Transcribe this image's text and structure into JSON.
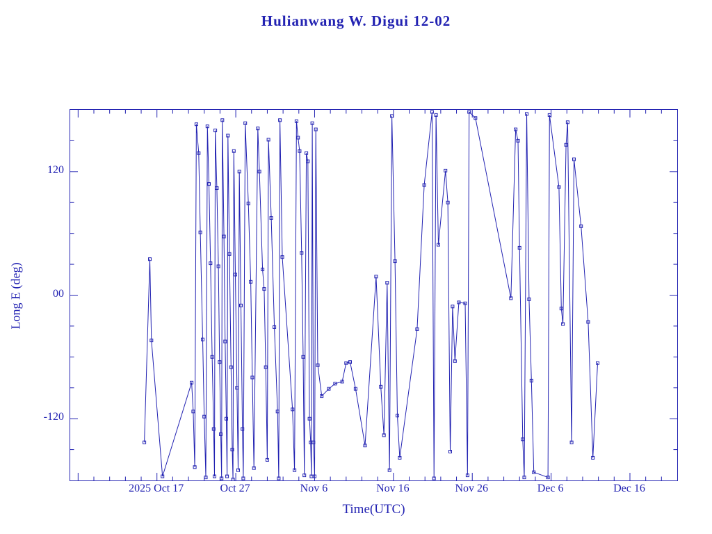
{
  "title": "Hulianwang W. Digui 12-02",
  "colors": {
    "accent": "#2222b2",
    "background": "#ffffff"
  },
  "chart_data": {
    "type": "line",
    "title": "Hulianwang W. Digui 12-02",
    "xlabel": "Time(UTC)",
    "ylabel": "Long E (deg)",
    "x_unit": "days since 2025 Oct 17 00:00 UTC",
    "xlim": [
      -11,
      66
    ],
    "ylim": [
      -180,
      180
    ],
    "grid": false,
    "legend": "none",
    "marker": "open-square",
    "line_color": "#2222b2",
    "x_ticks": [
      {
        "value": 0,
        "label": "2025 Oct 17"
      },
      {
        "value": 10,
        "label": "Oct 27"
      },
      {
        "value": 20,
        "label": "Nov 6"
      },
      {
        "value": 30,
        "label": "Nov 16"
      },
      {
        "value": 40,
        "label": "Nov 26"
      },
      {
        "value": 50,
        "label": "Dec 6"
      },
      {
        "value": 60,
        "label": "Dec 16"
      }
    ],
    "y_ticks": [
      {
        "value": 120,
        "label": "120"
      },
      {
        "value": 0,
        "label": "00"
      },
      {
        "value": -120,
        "label": "-120"
      }
    ],
    "x_minor_step": 2,
    "y_minor_step": 30,
    "points": [
      [
        -1.6,
        -143
      ],
      [
        -0.9,
        35
      ],
      [
        -0.7,
        -44
      ],
      [
        0.7,
        -176
      ],
      [
        4.4,
        -85
      ],
      [
        4.6,
        -113
      ],
      [
        4.8,
        -167
      ],
      [
        5.0,
        166
      ],
      [
        5.3,
        138
      ],
      [
        5.5,
        61
      ],
      [
        5.8,
        -43
      ],
      [
        6.0,
        -118
      ],
      [
        6.2,
        -177
      ],
      [
        6.4,
        164
      ],
      [
        6.6,
        108
      ],
      [
        6.8,
        31
      ],
      [
        7.0,
        -60
      ],
      [
        7.2,
        -130
      ],
      [
        7.3,
        -176
      ],
      [
        7.4,
        160
      ],
      [
        7.6,
        104
      ],
      [
        7.8,
        28
      ],
      [
        7.95,
        -65
      ],
      [
        8.1,
        -135
      ],
      [
        8.2,
        -178
      ],
      [
        8.3,
        170
      ],
      [
        8.5,
        57
      ],
      [
        8.65,
        -45
      ],
      [
        8.8,
        -120
      ],
      [
        8.9,
        -176
      ],
      [
        9.0,
        155
      ],
      [
        9.2,
        40
      ],
      [
        9.4,
        -70
      ],
      [
        9.55,
        -150
      ],
      [
        9.65,
        -179
      ],
      [
        9.75,
        140
      ],
      [
        9.95,
        20
      ],
      [
        10.15,
        -90
      ],
      [
        10.3,
        -170
      ],
      [
        10.45,
        120
      ],
      [
        10.65,
        -10
      ],
      [
        10.85,
        -130
      ],
      [
        10.95,
        -178
      ],
      [
        11.2,
        167
      ],
      [
        11.6,
        89
      ],
      [
        11.9,
        13
      ],
      [
        12.1,
        -80
      ],
      [
        12.3,
        -168
      ],
      [
        12.8,
        162
      ],
      [
        13.0,
        120
      ],
      [
        13.4,
        25
      ],
      [
        13.6,
        6
      ],
      [
        13.8,
        -70
      ],
      [
        14.0,
        -160
      ],
      [
        14.15,
        151
      ],
      [
        14.5,
        75
      ],
      [
        14.9,
        -31
      ],
      [
        15.3,
        -113
      ],
      [
        15.45,
        -178
      ],
      [
        15.6,
        170
      ],
      [
        15.9,
        37
      ],
      [
        17.2,
        -111
      ],
      [
        17.45,
        -170
      ],
      [
        17.7,
        169
      ],
      [
        17.9,
        153
      ],
      [
        18.1,
        140
      ],
      [
        18.35,
        41
      ],
      [
        18.55,
        -60
      ],
      [
        18.7,
        -175
      ],
      [
        18.95,
        138
      ],
      [
        19.15,
        130
      ],
      [
        19.35,
        -120
      ],
      [
        19.5,
        -143
      ],
      [
        19.6,
        -176
      ],
      [
        19.7,
        167
      ],
      [
        19.85,
        -143
      ],
      [
        20.0,
        -176
      ],
      [
        20.15,
        161
      ],
      [
        20.4,
        -68
      ],
      [
        20.9,
        -98
      ],
      [
        21.8,
        -91
      ],
      [
        22.6,
        -86
      ],
      [
        23.5,
        -84
      ],
      [
        24.0,
        -66
      ],
      [
        24.5,
        -65
      ],
      [
        25.2,
        -91
      ],
      [
        26.4,
        -146
      ],
      [
        27.8,
        18
      ],
      [
        28.4,
        -89
      ],
      [
        28.8,
        -136
      ],
      [
        29.2,
        12
      ],
      [
        29.5,
        -170
      ],
      [
        29.8,
        174
      ],
      [
        30.2,
        33
      ],
      [
        30.5,
        -117
      ],
      [
        30.8,
        -158
      ],
      [
        33.0,
        -33
      ],
      [
        33.9,
        107
      ],
      [
        34.9,
        178
      ],
      [
        35.15,
        -178
      ],
      [
        35.4,
        175
      ],
      [
        35.7,
        49
      ],
      [
        36.6,
        121
      ],
      [
        36.9,
        90
      ],
      [
        37.2,
        -152
      ],
      [
        37.5,
        -11
      ],
      [
        37.8,
        -64
      ],
      [
        38.3,
        -7
      ],
      [
        39.1,
        -8
      ],
      [
        39.4,
        -175
      ],
      [
        39.6,
        178
      ],
      [
        40.4,
        172
      ],
      [
        44.9,
        -3
      ],
      [
        45.5,
        161
      ],
      [
        45.8,
        150
      ],
      [
        46.0,
        46
      ],
      [
        46.4,
        -140
      ],
      [
        46.6,
        -177
      ],
      [
        46.9,
        176
      ],
      [
        47.2,
        -4
      ],
      [
        47.5,
        -83
      ],
      [
        47.8,
        -172
      ],
      [
        49.6,
        -177
      ],
      [
        49.8,
        175
      ],
      [
        51.0,
        105
      ],
      [
        51.3,
        -13
      ],
      [
        51.5,
        -28
      ],
      [
        51.9,
        146
      ],
      [
        52.1,
        168
      ],
      [
        52.6,
        -143
      ],
      [
        52.9,
        132
      ],
      [
        53.8,
        67
      ],
      [
        54.7,
        -26
      ],
      [
        55.3,
        -158
      ],
      [
        55.9,
        -66
      ]
    ]
  }
}
